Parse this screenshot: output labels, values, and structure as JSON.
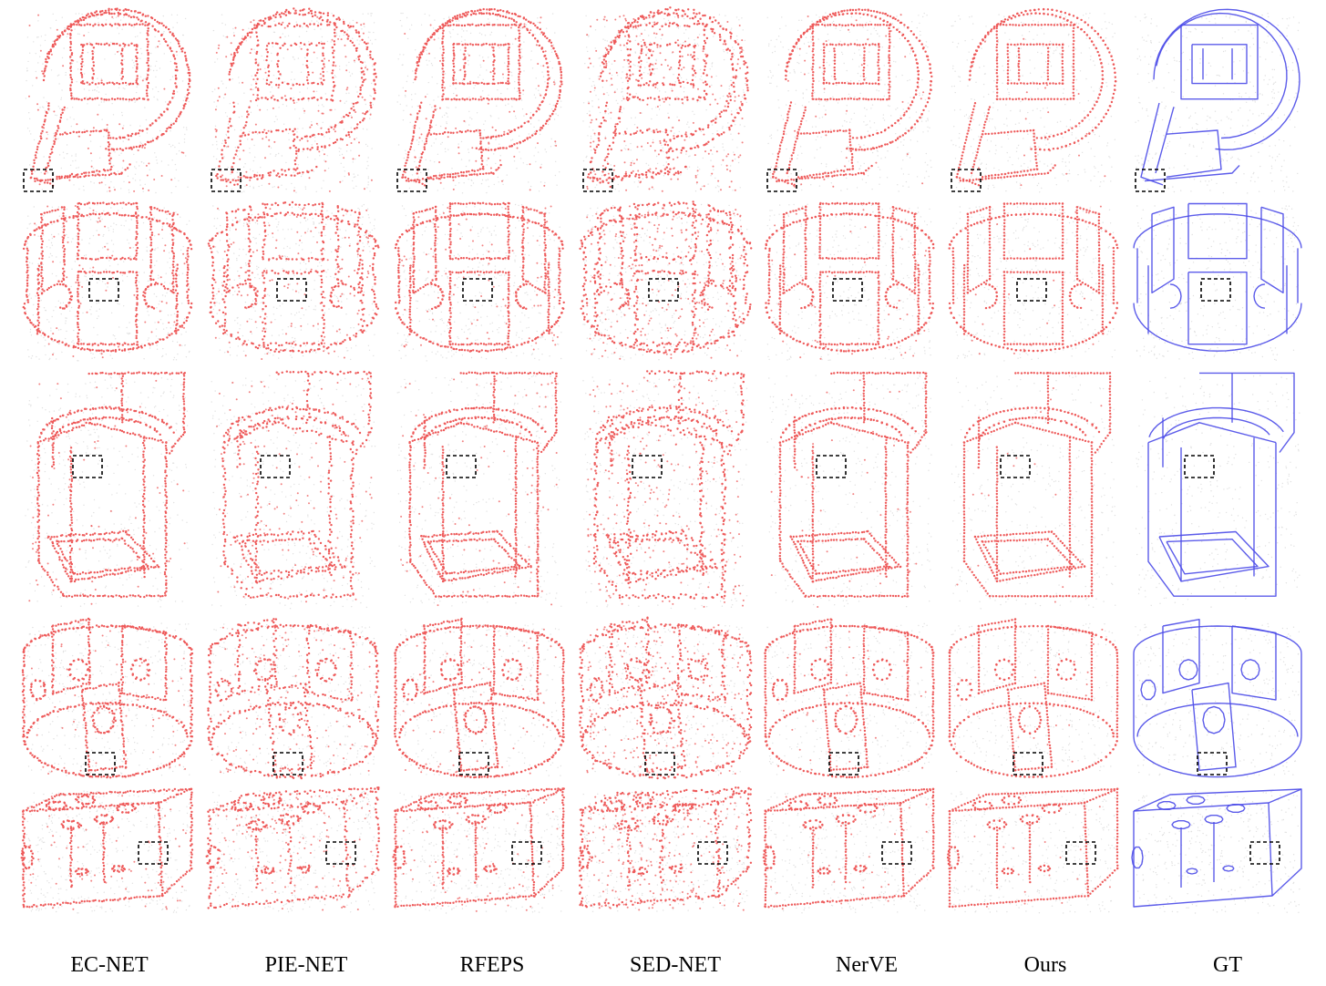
{
  "figure": {
    "columns": [
      {
        "label": "EC-NET",
        "kind": "prediction"
      },
      {
        "label": "PIE-NET",
        "kind": "prediction"
      },
      {
        "label": "RFEPS",
        "kind": "prediction"
      },
      {
        "label": "SED-NET",
        "kind": "prediction"
      },
      {
        "label": "NerVE",
        "kind": "prediction"
      },
      {
        "label": "Ours",
        "kind": "prediction"
      },
      {
        "label": "GT",
        "kind": "ground-truth"
      }
    ],
    "rows": [
      {
        "shape": "scroll-housing"
      },
      {
        "shape": "slotted-ring"
      },
      {
        "shape": "tall-block"
      },
      {
        "shape": "round-hub"
      },
      {
        "shape": "drilled-bar"
      }
    ],
    "colors": {
      "prediction_edges": "#ee5a5a",
      "ground_truth_edges": "#4a4ae8",
      "surface_points": "#c8c8c8",
      "highlight_box": "#000000"
    }
  }
}
